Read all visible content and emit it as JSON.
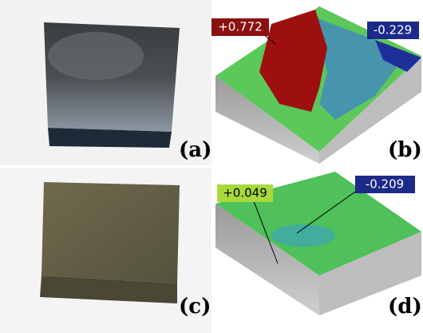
{
  "panels": [
    {
      "label": "(a)"
    },
    {
      "label": "(b)",
      "callouts": [
        "+0.772",
        "-0.229"
      ]
    },
    {
      "label": "(c)"
    },
    {
      "label": "(d)",
      "callouts": [
        "+0.049",
        "-0.209"
      ]
    }
  ]
}
